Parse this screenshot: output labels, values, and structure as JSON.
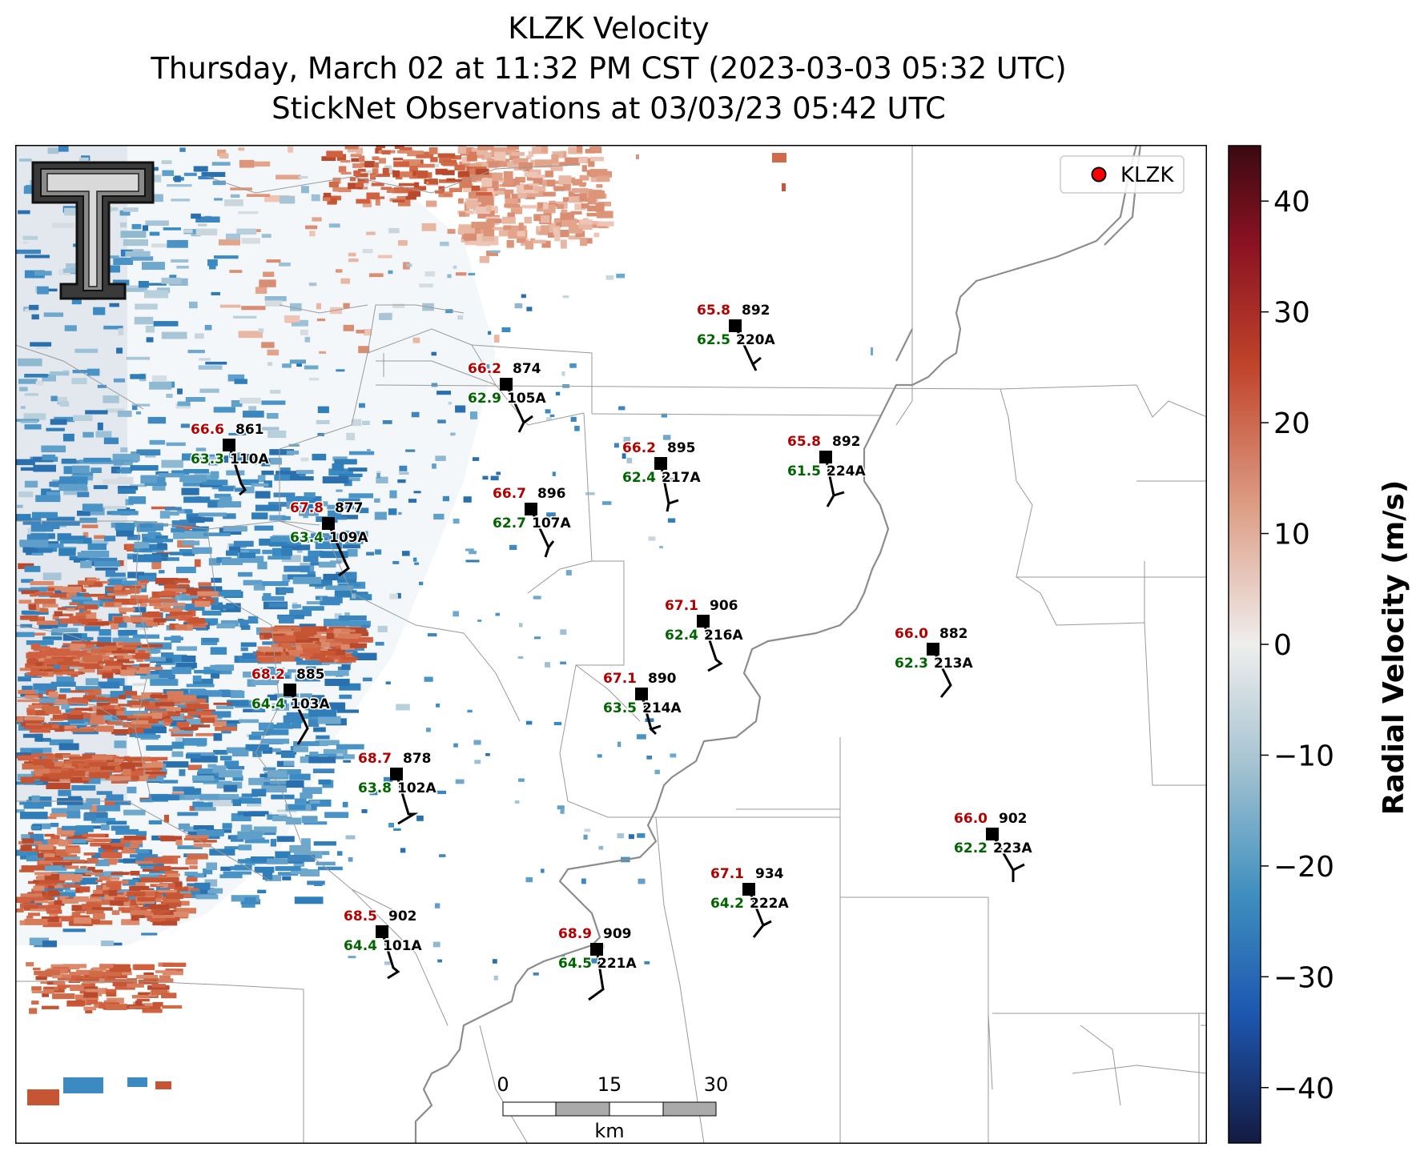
{
  "title": {
    "line1": "KLZK Velocity",
    "line2": "Thursday, March 02 at 11:32 PM CST (2023-03-03 05:32 UTC)",
    "line3": "StickNet Observations at 03/03/23 05:42 UTC"
  },
  "legend": {
    "label": "KLZK",
    "marker_color": "#ff0000"
  },
  "colorbar": {
    "label": "Radial Velocity (m/s)",
    "range": [
      -45,
      45
    ],
    "ticks": [
      "40",
      "30",
      "20",
      "10",
      "0",
      "−10",
      "−20",
      "−30",
      "−40"
    ],
    "tick_values": [
      40,
      30,
      20,
      10,
      0,
      -10,
      -20,
      -30,
      -40
    ]
  },
  "scalebar": {
    "labels": [
      "0",
      "15",
      "30"
    ],
    "unit": "km"
  },
  "logo": "texas-tech-double-t-logo",
  "colors": {
    "temperature": "#b30000",
    "dewpoint": "#006400",
    "label": "#000000"
  },
  "stations": [
    {
      "id": "220A",
      "temp": "65.8",
      "dew": "62.5",
      "pressure": "892"
    },
    {
      "id": "105A",
      "temp": "66.2",
      "dew": "62.9",
      "pressure": "874"
    },
    {
      "id": "110A",
      "temp": "66.6",
      "dew": "63.3",
      "pressure": "861"
    },
    {
      "id": "217A",
      "temp": "66.2",
      "dew": "62.4",
      "pressure": "895"
    },
    {
      "id": "224A",
      "temp": "65.8",
      "dew": "61.5",
      "pressure": "892"
    },
    {
      "id": "107A",
      "temp": "66.7",
      "dew": "62.7",
      "pressure": "896"
    },
    {
      "id": "109A",
      "temp": "67.8",
      "dew": "63.4",
      "pressure": "877"
    },
    {
      "id": "216A",
      "temp": "67.1",
      "dew": "62.4",
      "pressure": "906"
    },
    {
      "id": "213A",
      "temp": "66.0",
      "dew": "62.3",
      "pressure": "882"
    },
    {
      "id": "214A",
      "temp": "67.1",
      "dew": "63.5",
      "pressure": "890"
    },
    {
      "id": "103A",
      "temp": "68.2",
      "dew": "64.4",
      "pressure": "885"
    },
    {
      "id": "102A",
      "temp": "68.7",
      "dew": "63.8",
      "pressure": "878"
    },
    {
      "id": "223A",
      "temp": "66.0",
      "dew": "62.2",
      "pressure": "902"
    },
    {
      "id": "222A",
      "temp": "67.1",
      "dew": "64.2",
      "pressure": "934"
    },
    {
      "id": "101A",
      "temp": "68.5",
      "dew": "64.4",
      "pressure": "902"
    },
    {
      "id": "221A",
      "temp": "68.9",
      "dew": "64.5",
      "pressure": "909"
    }
  ]
}
